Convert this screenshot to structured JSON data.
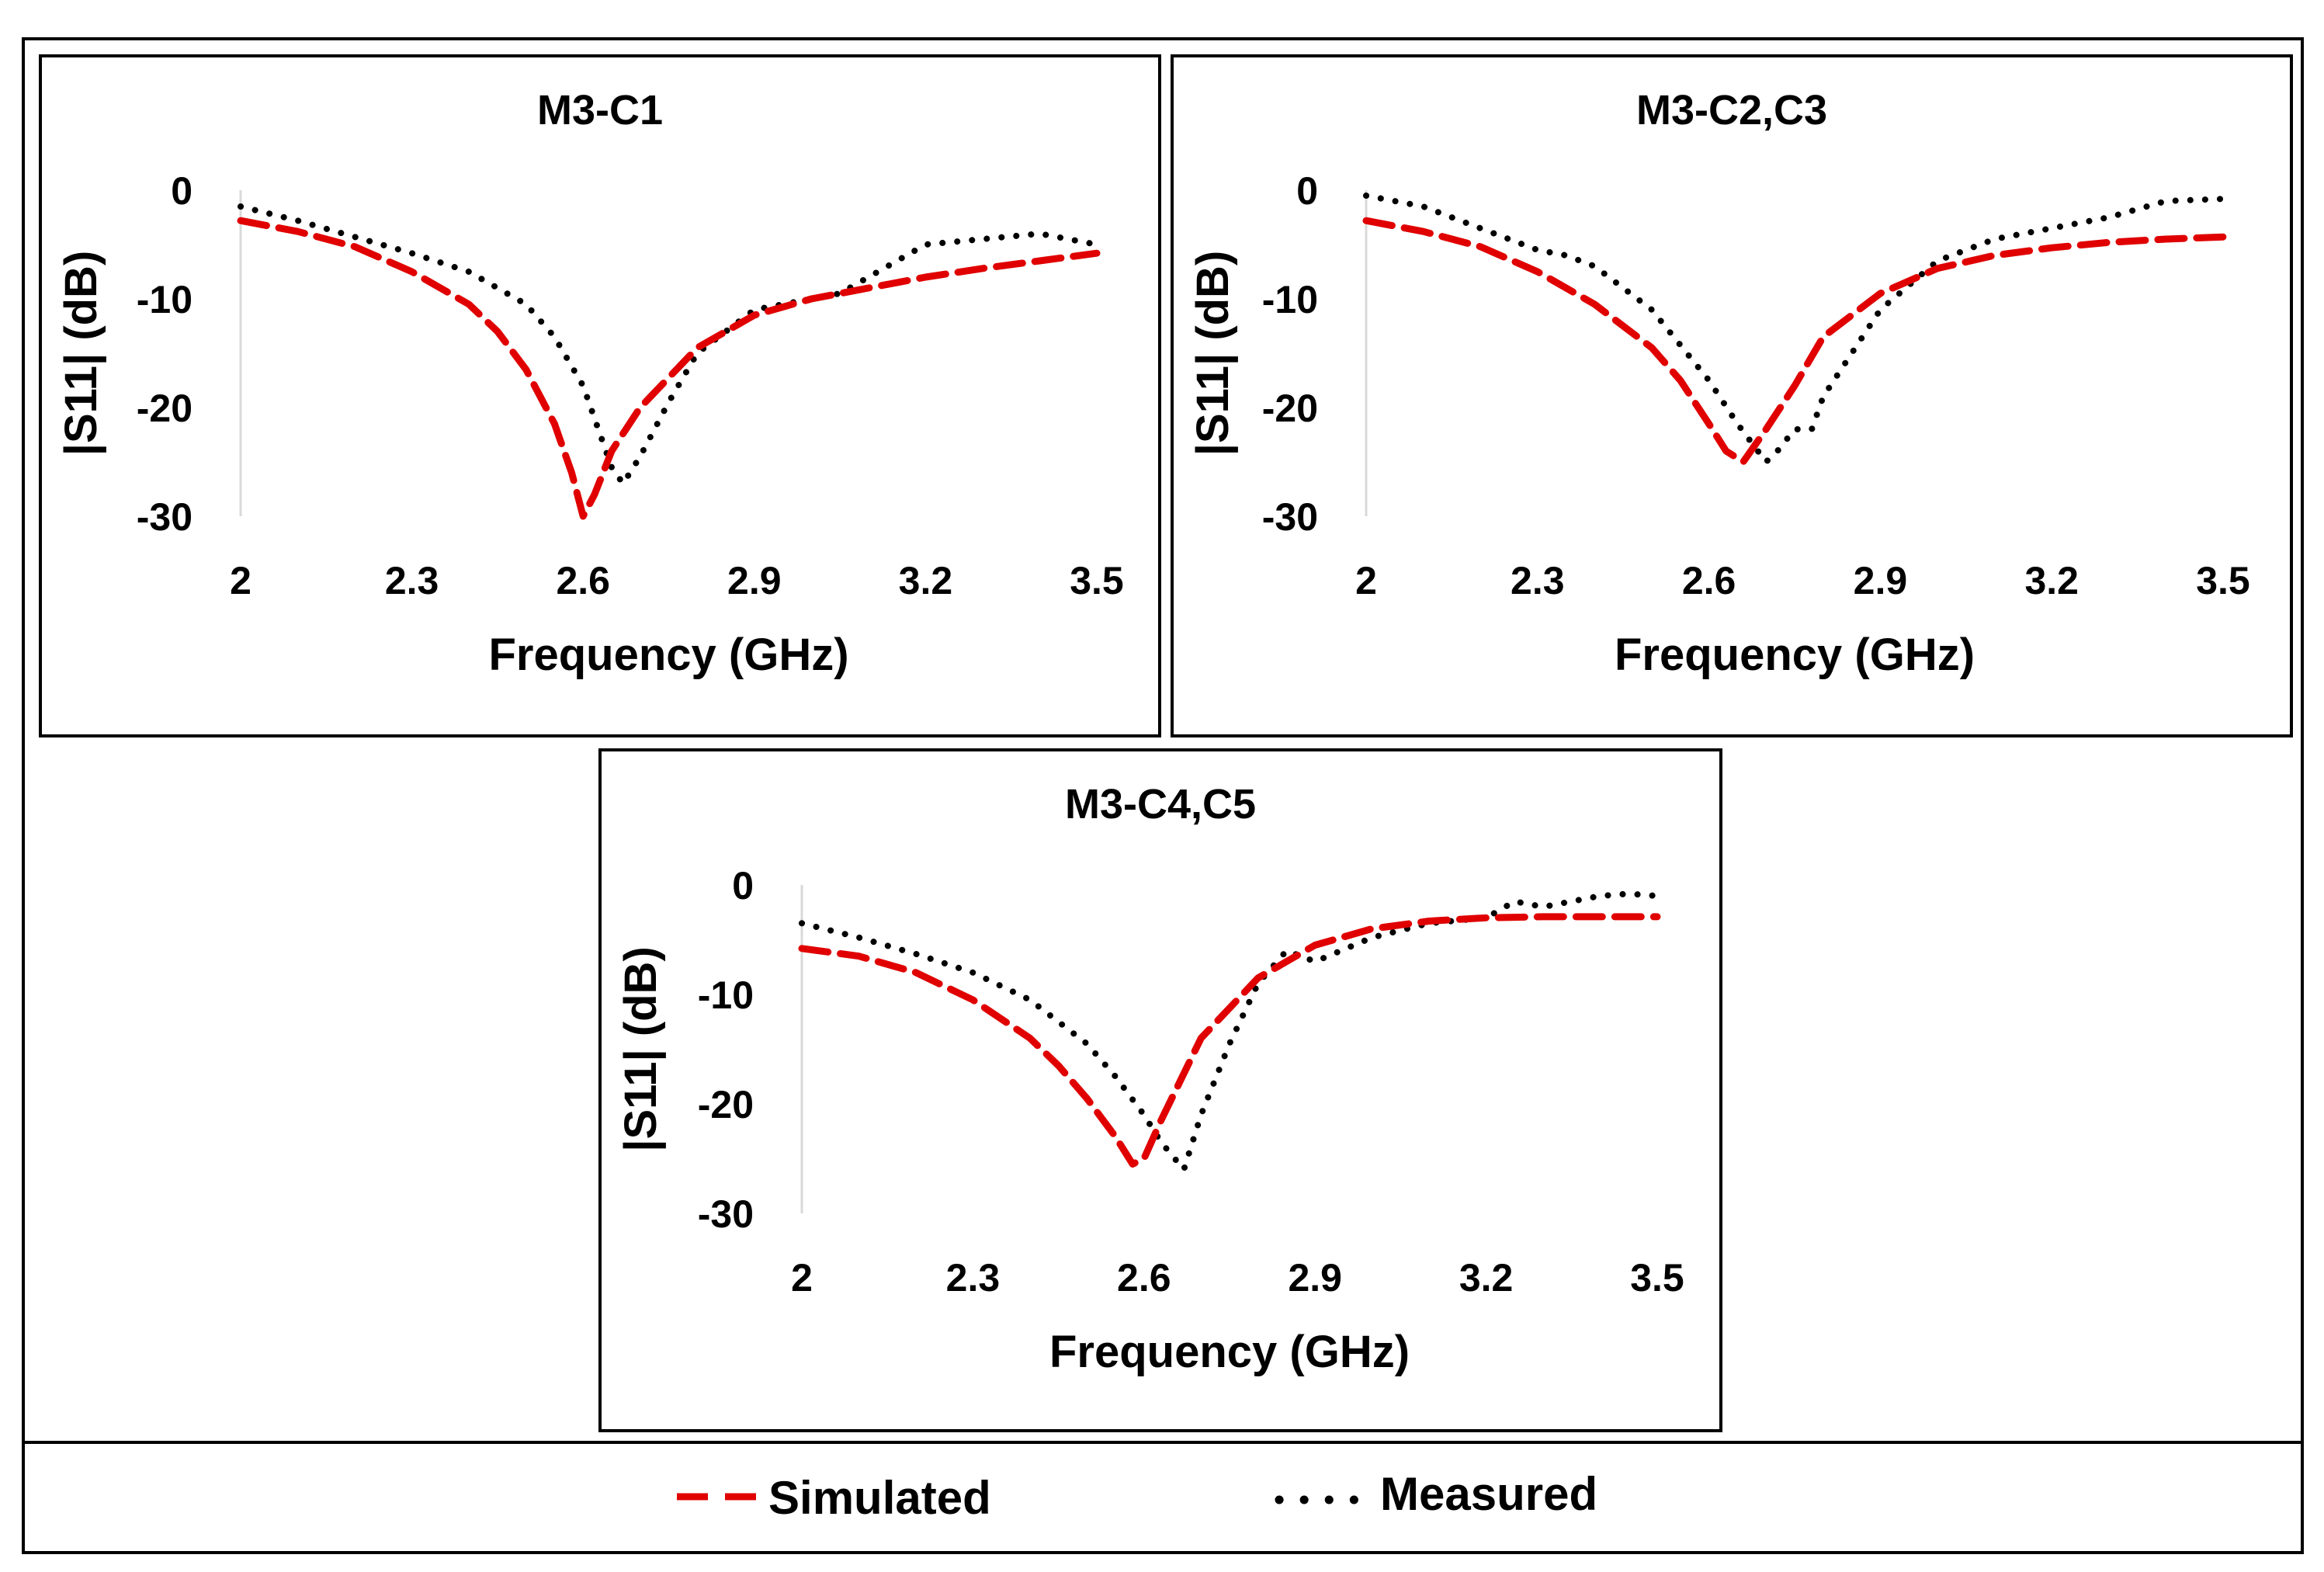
{
  "legend": {
    "simulated": "Simulated",
    "measured": "Measured"
  },
  "colors": {
    "simulated": "#e00000",
    "measured": "#000000"
  },
  "chart_data": [
    {
      "type": "line",
      "title": "M3-C1",
      "xlabel": "Frequency (GHz)",
      "ylabel": "|S11| (dB)",
      "xlim": [
        2,
        3.5
      ],
      "ylim": [
        -30,
        0
      ],
      "xticks": [
        "2",
        "2.3",
        "2.6",
        "2.9",
        "3.2",
        "3.5"
      ],
      "yticks": [
        "0",
        "-10",
        "-20",
        "-30"
      ],
      "series": [
        {
          "name": "Simulated",
          "x": [
            2.0,
            2.1,
            2.2,
            2.3,
            2.4,
            2.45,
            2.5,
            2.55,
            2.58,
            2.6,
            2.62,
            2.65,
            2.7,
            2.8,
            2.9,
            3.0,
            3.1,
            3.2,
            3.3,
            3.4,
            3.5
          ],
          "y": [
            -2.8,
            -3.8,
            -5.2,
            -7.5,
            -10.5,
            -13,
            -16.5,
            -21.5,
            -26,
            -30,
            -28,
            -24,
            -20,
            -14.5,
            -11.5,
            -10,
            -9,
            -8,
            -7.2,
            -6.5,
            -5.8
          ]
        },
        {
          "name": "Measured",
          "x": [
            2.0,
            2.1,
            2.2,
            2.3,
            2.4,
            2.5,
            2.55,
            2.6,
            2.63,
            2.65,
            2.67,
            2.7,
            2.75,
            2.8,
            2.9,
            3.0,
            3.05,
            3.1,
            3.2,
            3.3,
            3.4,
            3.5
          ],
          "y": [
            -1.5,
            -2.8,
            -4.3,
            -5.8,
            -7.5,
            -10.5,
            -13.5,
            -18,
            -22.5,
            -25.5,
            -27,
            -24.5,
            -19.5,
            -15,
            -11,
            -10,
            -9.5,
            -8,
            -5,
            -4.5,
            -4,
            -5
          ]
        }
      ]
    },
    {
      "type": "line",
      "title": "M3-C2,C3",
      "xlabel": "Frequency (GHz)",
      "ylabel": "|S11| (dB)",
      "xlim": [
        2,
        3.5
      ],
      "ylim": [
        -30,
        0
      ],
      "xticks": [
        "2",
        "2.3",
        "2.6",
        "2.9",
        "3.2",
        "3.5"
      ],
      "yticks": [
        "0",
        "-10",
        "-20",
        "-30"
      ],
      "series": [
        {
          "name": "Simulated",
          "x": [
            2.0,
            2.1,
            2.2,
            2.3,
            2.4,
            2.5,
            2.55,
            2.6,
            2.63,
            2.66,
            2.7,
            2.75,
            2.8,
            2.9,
            3.0,
            3.1,
            3.2,
            3.3,
            3.4,
            3.5
          ],
          "y": [
            -2.8,
            -3.8,
            -5.2,
            -7.5,
            -10.5,
            -14.5,
            -17.5,
            -21.5,
            -24,
            -25,
            -22,
            -18,
            -13.5,
            -9.5,
            -7.2,
            -6,
            -5.3,
            -4.8,
            -4.5,
            -4.3
          ]
        },
        {
          "name": "Measured",
          "x": [
            2.0,
            2.1,
            2.2,
            2.3,
            2.35,
            2.4,
            2.5,
            2.6,
            2.65,
            2.7,
            2.72,
            2.75,
            2.78,
            2.8,
            2.9,
            3.0,
            3.1,
            3.2,
            3.3,
            3.4,
            3.5
          ],
          "y": [
            -0.5,
            -1.5,
            -3.5,
            -5.5,
            -6,
            -7,
            -11,
            -17.5,
            -21.5,
            -25,
            -24,
            -22,
            -22,
            -19,
            -11,
            -6.5,
            -4.5,
            -3.5,
            -2.5,
            -1,
            -0.8
          ]
        }
      ]
    },
    {
      "type": "line",
      "title": "M3-C4,C5",
      "xlabel": "Frequency (GHz)",
      "ylabel": "|S11| (dB)",
      "xlim": [
        2,
        3.5
      ],
      "ylim": [
        -30,
        0
      ],
      "xticks": [
        "2",
        "2.3",
        "2.6",
        "2.9",
        "3.2",
        "3.5"
      ],
      "yticks": [
        "0",
        "-10",
        "-20",
        "-30"
      ],
      "series": [
        {
          "name": "Simulated",
          "x": [
            2.0,
            2.1,
            2.2,
            2.3,
            2.4,
            2.45,
            2.5,
            2.55,
            2.58,
            2.6,
            2.63,
            2.7,
            2.8,
            2.9,
            3.0,
            3.1,
            3.2,
            3.3,
            3.4,
            3.5
          ],
          "y": [
            -5.8,
            -6.5,
            -8,
            -10.5,
            -14,
            -16.5,
            -19.5,
            -23,
            -25.5,
            -25,
            -21.5,
            -14,
            -8.5,
            -5.5,
            -4,
            -3.3,
            -3,
            -2.9,
            -2.9,
            -2.9
          ]
        },
        {
          "name": "Measured",
          "x": [
            2.0,
            2.1,
            2.2,
            2.3,
            2.4,
            2.5,
            2.55,
            2.6,
            2.63,
            2.67,
            2.7,
            2.75,
            2.8,
            2.85,
            2.9,
            3.0,
            3.1,
            3.2,
            3.25,
            3.3,
            3.4,
            3.45,
            3.5
          ],
          "y": [
            -3.5,
            -4.8,
            -6.3,
            -8,
            -10.5,
            -14.5,
            -17.5,
            -21,
            -23.5,
            -26,
            -21,
            -14.5,
            -9,
            -6,
            -7,
            -4.8,
            -3.5,
            -3,
            -1.5,
            -2,
            -1,
            -0.8,
            -1
          ]
        }
      ]
    }
  ]
}
